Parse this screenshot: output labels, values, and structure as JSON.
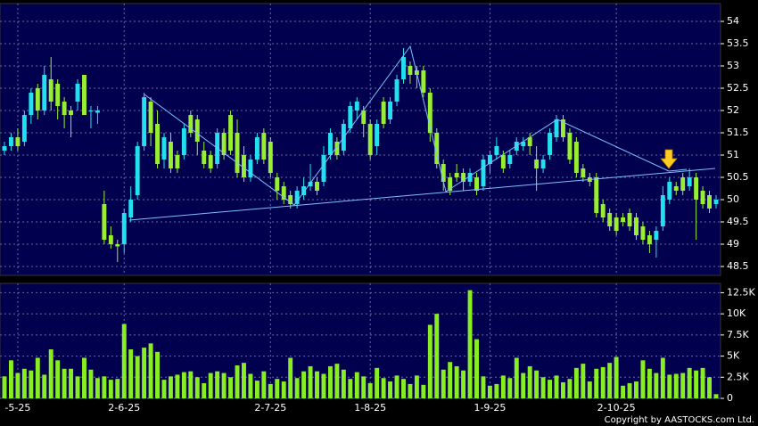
{
  "chart_data": {
    "type": "candlestick",
    "categories": [
      null,
      null,
      "-5-25",
      null,
      null,
      null,
      null,
      null,
      null,
      null,
      null,
      null,
      null,
      null,
      null,
      null,
      null,
      null,
      "2-6-25",
      null,
      null,
      null,
      null,
      null,
      null,
      null,
      null,
      null,
      null,
      null,
      null,
      null,
      null,
      null,
      null,
      null,
      null,
      null,
      null,
      null,
      "2-7-25",
      null,
      null,
      null,
      null,
      null,
      null,
      null,
      null,
      null,
      null,
      null,
      null,
      null,
      null,
      "1-8-25",
      null,
      null,
      null,
      null,
      null,
      null,
      null,
      null,
      null,
      null,
      null,
      null,
      null,
      null,
      null,
      null,
      null,
      "1-9-25",
      null,
      null,
      null,
      null,
      null,
      null,
      null,
      null,
      null,
      null,
      null,
      null,
      null,
      null,
      null,
      null,
      null,
      null,
      "2-10-25",
      null,
      null,
      null,
      null,
      null,
      null,
      null,
      null,
      null,
      null,
      null,
      null,
      null,
      null,
      null
    ],
    "open": [
      51.1,
      51.2,
      51.4,
      51.3,
      51.9,
      52.5,
      52.0,
      52.7,
      52.6,
      52.2,
      52.0,
      52.2,
      52.8,
      52.0,
      51.95,
      49.9,
      49.2,
      49.0,
      49.0,
      49.6,
      50.1,
      51.2,
      52.2,
      51.7,
      50.9,
      51.3,
      51.0,
      51.0,
      51.9,
      51.8,
      51.1,
      51.0,
      50.8,
      51.5,
      51.9,
      51.5,
      51.0,
      50.5,
      50.9,
      51.5,
      51.3,
      50.5,
      50.3,
      50.1,
      49.9,
      50.1,
      50.3,
      50.4,
      50.4,
      51.0,
      51.3,
      51.1,
      51.6,
      52.0,
      52.0,
      51.7,
      51.2,
      52.2,
      51.8,
      52.2,
      52.7,
      53.0,
      52.9,
      52.9,
      52.4,
      51.5,
      50.8,
      50.5,
      50.6,
      50.6,
      50.4,
      50.5,
      50.3,
      50.8,
      51.0,
      51.0,
      50.8,
      51.1,
      51.2,
      51.4,
      50.9,
      50.7,
      51.0,
      51.4,
      51.8,
      51.5,
      51.3,
      50.7,
      50.5,
      50.5,
      49.9,
      49.7,
      49.6,
      49.6,
      49.7,
      49.6,
      49.4,
      49.2,
      49.1,
      49.4,
      50.0,
      50.3,
      50.5,
      50.3,
      50.5,
      50.2,
      50.1,
      49.9
    ],
    "high": [
      51.3,
      51.5,
      51.6,
      52.0,
      52.5,
      52.6,
      53.0,
      53.2,
      52.7,
      52.3,
      52.1,
      52.7,
      52.8,
      52.1,
      52.1,
      50.2,
      49.4,
      49.1,
      49.8,
      50.3,
      51.3,
      52.4,
      52.3,
      52.0,
      51.5,
      51.5,
      51.1,
      51.7,
      52.0,
      51.9,
      51.3,
      51.1,
      51.6,
      51.6,
      52.0,
      51.8,
      51.2,
      51.0,
      51.5,
      51.6,
      51.4,
      50.6,
      50.4,
      50.2,
      50.3,
      50.5,
      50.8,
      50.5,
      51.2,
      51.6,
      51.4,
      51.8,
      52.2,
      52.3,
      52.1,
      51.8,
      51.8,
      52.3,
      52.3,
      52.8,
      53.4,
      53.1,
      53.0,
      53.0,
      52.5,
      51.6,
      50.9,
      50.6,
      50.8,
      50.7,
      50.7,
      50.6,
      51.0,
      51.1,
      51.4,
      51.1,
      51.1,
      51.4,
      51.4,
      51.5,
      51.2,
      51.0,
      51.6,
      51.9,
      51.9,
      51.6,
      51.4,
      50.8,
      50.6,
      50.6,
      50.0,
      49.8,
      49.7,
      49.7,
      49.8,
      49.7,
      49.5,
      49.3,
      49.4,
      50.3,
      50.5,
      50.4,
      50.6,
      50.7,
      50.6,
      50.3,
      50.2,
      50.1
    ],
    "low": [
      51.0,
      51.1,
      51.1,
      51.2,
      51.7,
      51.8,
      51.9,
      52.0,
      51.8,
      51.6,
      51.4,
      52.0,
      51.9,
      51.6,
      51.7,
      49.0,
      48.9,
      48.6,
      48.8,
      49.5,
      50.0,
      51.1,
      51.2,
      50.7,
      50.7,
      50.6,
      50.6,
      50.9,
      51.4,
      51.0,
      50.7,
      50.6,
      50.7,
      50.9,
      51.0,
      50.5,
      50.4,
      50.4,
      50.8,
      50.8,
      50.5,
      50.0,
      49.9,
      49.8,
      49.8,
      50.0,
      50.2,
      50.1,
      50.3,
      50.9,
      50.9,
      51.0,
      51.5,
      51.8,
      51.4,
      50.9,
      51.0,
      51.6,
      51.7,
      52.1,
      52.6,
      52.6,
      52.5,
      52.3,
      51.3,
      50.7,
      50.2,
      50.1,
      50.4,
      50.2,
      50.3,
      50.1,
      50.2,
      50.6,
      50.9,
      50.6,
      50.7,
      51.0,
      51.1,
      51.0,
      50.2,
      50.6,
      50.9,
      51.3,
      51.3,
      50.8,
      50.5,
      50.4,
      50.3,
      49.6,
      49.5,
      49.3,
      49.2,
      49.4,
      49.3,
      49.1,
      49.0,
      48.8,
      48.7,
      49.3,
      49.9,
      50.1,
      50.1,
      50.2,
      49.1,
      49.8,
      49.7,
      49.8
    ],
    "close": [
      51.2,
      51.4,
      51.2,
      51.9,
      52.4,
      52.0,
      52.8,
      52.2,
      52.1,
      51.9,
      51.9,
      52.6,
      51.9,
      52.0,
      52.0,
      49.1,
      49.0,
      48.95,
      49.7,
      50.0,
      51.2,
      52.3,
      51.5,
      50.8,
      51.4,
      50.7,
      50.7,
      51.6,
      51.5,
      51.3,
      50.8,
      50.7,
      51.5,
      51.0,
      51.1,
      50.6,
      50.5,
      50.9,
      51.4,
      50.9,
      50.6,
      50.2,
      50.0,
      49.9,
      50.2,
      50.3,
      50.4,
      50.2,
      51.0,
      51.5,
      51.0,
      51.7,
      52.1,
      52.2,
      51.7,
      51.0,
      51.7,
      51.7,
      52.2,
      52.7,
      53.2,
      52.8,
      52.8,
      52.4,
      51.5,
      50.8,
      50.4,
      50.2,
      50.5,
      50.4,
      50.6,
      50.2,
      50.9,
      51.0,
      51.2,
      50.7,
      51.0,
      51.3,
      51.3,
      51.2,
      50.7,
      50.9,
      51.5,
      51.8,
      51.4,
      50.9,
      50.6,
      50.5,
      50.4,
      49.7,
      49.6,
      49.4,
      49.3,
      49.5,
      49.4,
      49.2,
      49.1,
      49.0,
      49.3,
      50.1,
      50.4,
      50.2,
      50.2,
      50.5,
      50.0,
      49.9,
      49.8,
      50.0
    ],
    "volume": [
      2600,
      4500,
      3000,
      3500,
      3300,
      4800,
      2800,
      5800,
      4500,
      3500,
      3500,
      2600,
      4800,
      3400,
      2400,
      2600,
      2200,
      2300,
      8800,
      5800,
      5000,
      6000,
      6500,
      5500,
      2200,
      2600,
      2800,
      3100,
      3200,
      2500,
      1800,
      3000,
      3200,
      3000,
      2500,
      3900,
      4200,
      2900,
      2100,
      3200,
      1700,
      2300,
      2000,
      4800,
      2400,
      3200,
      3800,
      3200,
      2900,
      3800,
      4100,
      3400,
      2300,
      3100,
      2600,
      1800,
      3600,
      2400,
      2000,
      2700,
      2300,
      1700,
      2700,
      1600,
      8700,
      10000,
      3400,
      4300,
      3800,
      3300,
      12800,
      7000,
      2600,
      1500,
      1700,
      2700,
      2400,
      4800,
      3000,
      3800,
      3300,
      2500,
      2200,
      2700,
      1900,
      2300,
      3600,
      4100,
      2000,
      3500,
      3700,
      4200,
      4900,
      1500,
      1800,
      2000,
      4500,
      3500,
      3000,
      4800,
      2800,
      2900,
      3000,
      3600,
      3300,
      3600,
      2500,
      500
    ],
    "up_color": "#22e0f0",
    "down_color": "#99ee33",
    "volume_color": "#88ee22",
    "ylim": [
      48.3,
      54.4
    ],
    "yticks": [
      48.5,
      49,
      49.5,
      50,
      50.5,
      51,
      51.5,
      52,
      52.5,
      53,
      53.5,
      54
    ],
    "y2lim": [
      0,
      13600
    ],
    "y2ticks": [
      0,
      {
        "value": 2500,
        "label": "2.5K"
      },
      {
        "value": 5000,
        "label": "5K"
      },
      {
        "value": 7500,
        "label": "7.5K"
      },
      {
        "value": 10000,
        "label": "10K"
      },
      {
        "value": 12500,
        "label": "12.5K"
      }
    ],
    "grid": true,
    "copyright": "Copyright by AASTOCKS.com Ltd."
  }
}
